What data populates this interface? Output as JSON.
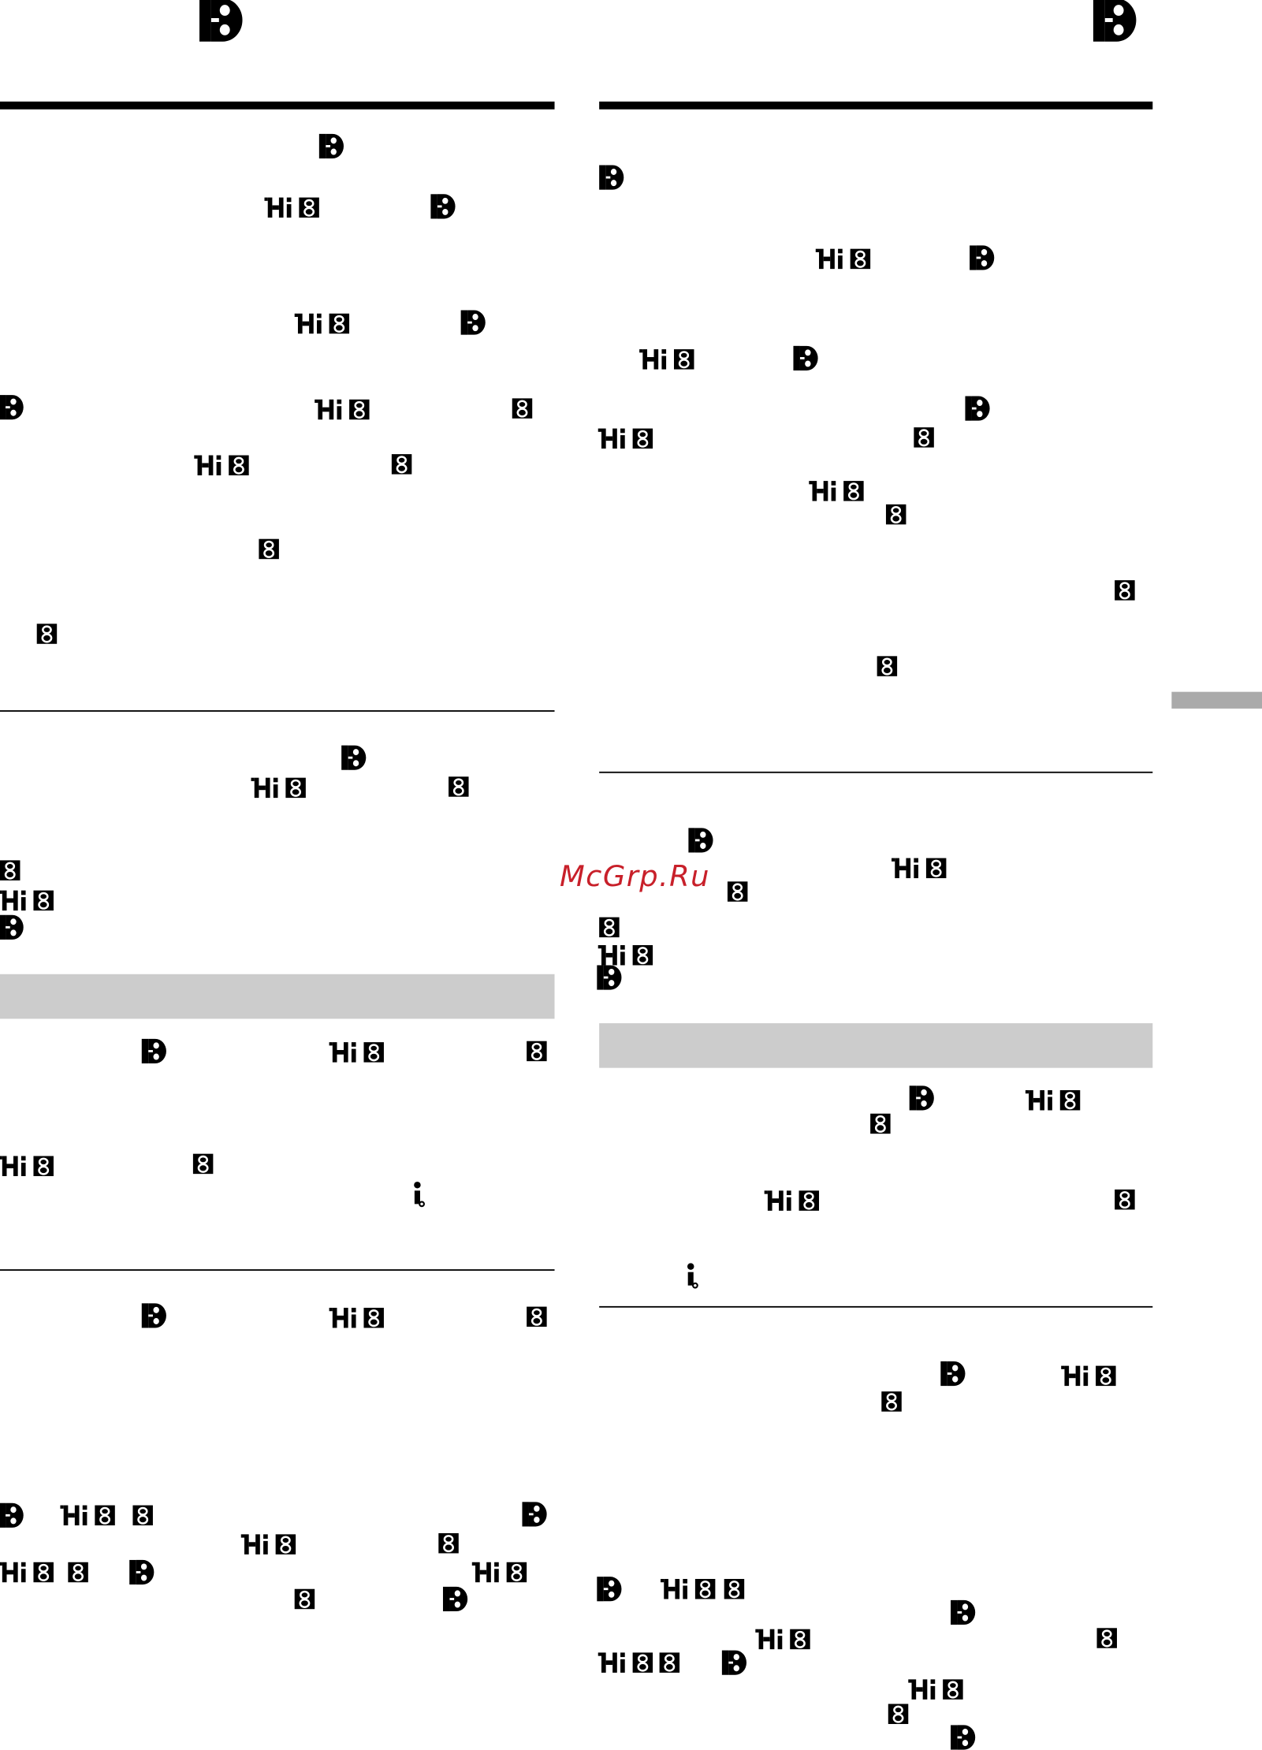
{
  "watermark": "McGrp.Ru"
}
